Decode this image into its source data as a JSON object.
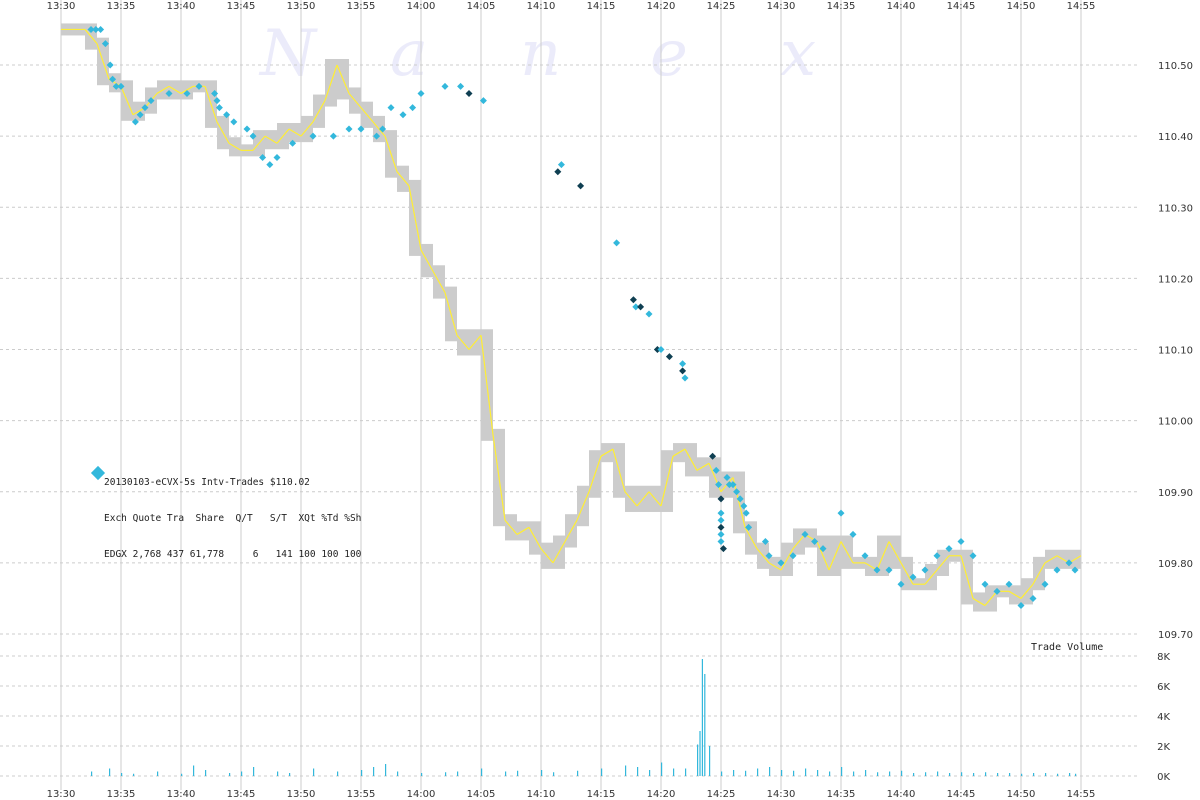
{
  "chart_data": {
    "type": "scatter",
    "watermark": [
      "N",
      "a",
      "n",
      "e",
      "x"
    ],
    "x_ticks": [
      "13:30",
      "13:35",
      "13:40",
      "13:45",
      "13:50",
      "13:55",
      "14:00",
      "14:05",
      "14:10",
      "14:15",
      "14:20",
      "14:25",
      "14:30",
      "14:35",
      "14:40",
      "14:45",
      "14:50",
      "14:55"
    ],
    "x_range_min": [
      810,
      895
    ],
    "price_axis": {
      "ticks": [
        "110.50",
        "110.40",
        "110.30",
        "110.20",
        "110.10",
        "110.00",
        "109.90",
        "109.80",
        "109.70"
      ],
      "ylim": [
        109.7,
        110.5
      ]
    },
    "volume_axis": {
      "label": "Trade Volume",
      "ticks": [
        "8K",
        "6K",
        "4K",
        "2K",
        "0K"
      ],
      "ylim": [
        0,
        8000
      ]
    },
    "legend": {
      "line1": "20130103-eCVX-5s Intv-Trades $110.02",
      "line2": "Exch Quote Tra  Share  Q/T   S/T  XQt %Td %Sh",
      "line3": "EDGX 2,768 437 61,778     6   141 100 100 100"
    },
    "colors": {
      "quote_band": "#cccccc",
      "trade_line": "#ffee33",
      "edgx_quote": "#33b8dc",
      "edgx_dark": "#0f3f52",
      "volume": "#33b8dc",
      "grid": "#cccccc"
    },
    "series": [
      {
        "name": "EDGX",
        "points": [
          [
            812.5,
            110.55
          ],
          [
            812.9,
            110.55
          ],
          [
            813.3,
            110.55
          ],
          [
            813.7,
            110.53
          ],
          [
            814.1,
            110.5
          ],
          [
            814.3,
            110.48
          ],
          [
            814.6,
            110.47
          ],
          [
            815.0,
            110.47
          ],
          [
            816.2,
            110.42
          ],
          [
            816.6,
            110.43
          ],
          [
            817.0,
            110.44
          ],
          [
            817.5,
            110.45
          ],
          [
            819.0,
            110.46
          ],
          [
            820.5,
            110.46
          ],
          [
            821.5,
            110.47
          ],
          [
            822.8,
            110.46
          ],
          [
            823.0,
            110.45
          ],
          [
            823.2,
            110.44
          ],
          [
            823.8,
            110.43
          ],
          [
            824.4,
            110.42
          ],
          [
            825.5,
            110.41
          ],
          [
            826.0,
            110.4
          ],
          [
            826.8,
            110.37
          ],
          [
            827.4,
            110.36
          ],
          [
            828.0,
            110.37
          ],
          [
            829.3,
            110.39
          ],
          [
            831.0,
            110.4
          ],
          [
            832.7,
            110.4
          ],
          [
            834.0,
            110.41
          ],
          [
            835.0,
            110.41
          ],
          [
            836.3,
            110.4
          ],
          [
            836.8,
            110.41
          ],
          [
            837.5,
            110.44
          ],
          [
            838.5,
            110.43
          ],
          [
            839.3,
            110.44
          ],
          [
            840.0,
            110.46
          ],
          [
            842.0,
            110.47
          ],
          [
            843.3,
            110.47
          ],
          [
            844.0,
            110.46
          ],
          [
            845.2,
            110.45
          ],
          [
            851.4,
            110.35
          ],
          [
            851.7,
            110.36
          ],
          [
            853.3,
            110.33
          ],
          [
            856.3,
            110.25
          ],
          [
            857.7,
            110.17
          ],
          [
            857.9,
            110.16
          ],
          [
            858.3,
            110.16
          ],
          [
            859.0,
            110.15
          ],
          [
            859.7,
            110.1
          ],
          [
            860.0,
            110.1
          ],
          [
            860.7,
            110.09
          ],
          [
            861.8,
            110.08
          ],
          [
            861.8,
            110.07
          ],
          [
            862.0,
            110.06
          ],
          [
            864.3,
            109.95
          ],
          [
            864.6,
            109.93
          ],
          [
            864.8,
            109.91
          ],
          [
            865.0,
            109.89
          ],
          [
            865.0,
            109.87
          ],
          [
            865.0,
            109.86
          ],
          [
            865.0,
            109.85
          ],
          [
            865.0,
            109.84
          ],
          [
            865.0,
            109.83
          ],
          [
            865.2,
            109.82
          ],
          [
            865.5,
            109.92
          ],
          [
            865.7,
            109.91
          ],
          [
            866.0,
            109.91
          ],
          [
            866.3,
            109.9
          ],
          [
            866.6,
            109.89
          ],
          [
            866.9,
            109.88
          ],
          [
            867.1,
            109.87
          ],
          [
            867.3,
            109.85
          ],
          [
            868.7,
            109.83
          ],
          [
            869.0,
            109.81
          ],
          [
            870.0,
            109.8
          ],
          [
            871.0,
            109.81
          ],
          [
            872.0,
            109.84
          ],
          [
            872.8,
            109.83
          ],
          [
            873.5,
            109.82
          ],
          [
            875.0,
            109.87
          ],
          [
            876.0,
            109.84
          ],
          [
            877.0,
            109.81
          ],
          [
            878.0,
            109.79
          ],
          [
            879.0,
            109.79
          ],
          [
            880.0,
            109.77
          ],
          [
            881.0,
            109.78
          ],
          [
            882.0,
            109.79
          ],
          [
            883.0,
            109.81
          ],
          [
            884.0,
            109.82
          ],
          [
            885.0,
            109.83
          ],
          [
            886.0,
            109.81
          ],
          [
            887.0,
            109.77
          ],
          [
            888.0,
            109.76
          ],
          [
            889.0,
            109.77
          ],
          [
            890.0,
            109.74
          ],
          [
            891.0,
            109.75
          ],
          [
            892.0,
            109.77
          ],
          [
            893.0,
            109.79
          ],
          [
            894.0,
            109.8
          ],
          [
            894.5,
            109.79
          ]
        ]
      }
    ],
    "quote_band": [
      [
        810,
        110.55
      ],
      [
        812,
        110.55
      ],
      [
        813,
        110.53
      ],
      [
        814,
        110.48
      ],
      [
        815,
        110.47
      ],
      [
        816,
        110.43
      ],
      [
        817,
        110.44
      ],
      [
        818,
        110.46
      ],
      [
        819,
        110.47
      ],
      [
        820,
        110.46
      ],
      [
        821,
        110.47
      ],
      [
        822,
        110.47
      ],
      [
        823,
        110.42
      ],
      [
        824,
        110.39
      ],
      [
        825,
        110.38
      ],
      [
        826,
        110.38
      ],
      [
        827,
        110.4
      ],
      [
        828,
        110.39
      ],
      [
        829,
        110.41
      ],
      [
        830,
        110.4
      ],
      [
        831,
        110.42
      ],
      [
        832,
        110.45
      ],
      [
        833,
        110.5
      ],
      [
        834,
        110.46
      ],
      [
        835,
        110.44
      ],
      [
        836,
        110.42
      ],
      [
        837,
        110.4
      ],
      [
        838,
        110.35
      ],
      [
        839,
        110.33
      ],
      [
        840,
        110.24
      ],
      [
        841,
        110.21
      ],
      [
        842,
        110.18
      ],
      [
        843,
        110.12
      ],
      [
        844,
        110.1
      ],
      [
        845,
        110.12
      ],
      [
        846,
        109.98
      ],
      [
        847,
        109.86
      ],
      [
        848,
        109.84
      ],
      [
        849,
        109.85
      ],
      [
        850,
        109.82
      ],
      [
        851,
        109.8
      ],
      [
        852,
        109.83
      ],
      [
        853,
        109.86
      ],
      [
        854,
        109.9
      ],
      [
        855,
        109.95
      ],
      [
        856,
        109.96
      ],
      [
        857,
        109.9
      ],
      [
        858,
        109.88
      ],
      [
        859,
        109.9
      ],
      [
        860,
        109.88
      ],
      [
        861,
        109.95
      ],
      [
        862,
        109.96
      ],
      [
        863,
        109.93
      ],
      [
        864,
        109.94
      ],
      [
        865,
        109.9
      ],
      [
        866,
        109.92
      ],
      [
        867,
        109.85
      ],
      [
        868,
        109.82
      ],
      [
        869,
        109.8
      ],
      [
        870,
        109.79
      ],
      [
        871,
        109.82
      ],
      [
        872,
        109.84
      ],
      [
        873,
        109.83
      ],
      [
        874,
        109.79
      ],
      [
        875,
        109.83
      ],
      [
        876,
        109.8
      ],
      [
        877,
        109.8
      ],
      [
        878,
        109.79
      ],
      [
        879,
        109.83
      ],
      [
        880,
        109.8
      ],
      [
        881,
        109.77
      ],
      [
        882,
        109.77
      ],
      [
        883,
        109.79
      ],
      [
        884,
        109.81
      ],
      [
        885,
        109.81
      ],
      [
        886,
        109.75
      ],
      [
        887,
        109.74
      ],
      [
        888,
        109.76
      ],
      [
        889,
        109.76
      ],
      [
        890,
        109.75
      ],
      [
        891,
        109.77
      ],
      [
        892,
        109.8
      ],
      [
        893,
        109.81
      ],
      [
        894,
        109.8
      ],
      [
        895,
        109.81
      ]
    ],
    "volume": [
      [
        812.5,
        300
      ],
      [
        814,
        500
      ],
      [
        815,
        200
      ],
      [
        816,
        150
      ],
      [
        818,
        300
      ],
      [
        820,
        150
      ],
      [
        821,
        700
      ],
      [
        822,
        400
      ],
      [
        824,
        200
      ],
      [
        825,
        300
      ],
      [
        826,
        600
      ],
      [
        828,
        300
      ],
      [
        829,
        200
      ],
      [
        831,
        500
      ],
      [
        833,
        300
      ],
      [
        835,
        400
      ],
      [
        836,
        600
      ],
      [
        837,
        800
      ],
      [
        838,
        300
      ],
      [
        840,
        200
      ],
      [
        842,
        250
      ],
      [
        843,
        300
      ],
      [
        845,
        500
      ],
      [
        847,
        300
      ],
      [
        848,
        350
      ],
      [
        850,
        400
      ],
      [
        851,
        250
      ],
      [
        853,
        350
      ],
      [
        855,
        500
      ],
      [
        857,
        700
      ],
      [
        858,
        600
      ],
      [
        859,
        400
      ],
      [
        860,
        900
      ],
      [
        861,
        500
      ],
      [
        862,
        500
      ],
      [
        863,
        2100
      ],
      [
        863.2,
        3000
      ],
      [
        863.4,
        7800
      ],
      [
        863.6,
        6800
      ],
      [
        864,
        2000
      ],
      [
        865,
        300
      ],
      [
        866,
        400
      ],
      [
        867,
        350
      ],
      [
        868,
        500
      ],
      [
        869,
        600
      ],
      [
        870,
        400
      ],
      [
        871,
        350
      ],
      [
        872,
        500
      ],
      [
        873,
        400
      ],
      [
        874,
        300
      ],
      [
        875,
        600
      ],
      [
        876,
        300
      ],
      [
        877,
        400
      ],
      [
        878,
        250
      ],
      [
        879,
        300
      ],
      [
        880,
        350
      ],
      [
        881,
        200
      ],
      [
        882,
        250
      ],
      [
        883,
        300
      ],
      [
        884,
        200
      ],
      [
        885,
        250
      ],
      [
        886,
        200
      ],
      [
        887,
        250
      ],
      [
        888,
        200
      ],
      [
        889,
        200
      ],
      [
        890,
        150
      ],
      [
        891,
        200
      ],
      [
        892,
        200
      ],
      [
        893,
        150
      ],
      [
        894,
        200
      ],
      [
        894.5,
        150
      ]
    ]
  }
}
